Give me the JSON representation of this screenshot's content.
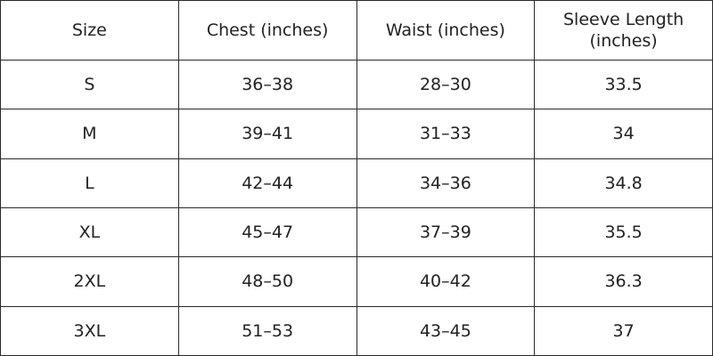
{
  "table": {
    "header": [
      "Size",
      "Chest (inches)",
      "Waist (inches)",
      "Sleeve Length (inches)"
    ],
    "rows": [
      [
        "S",
        "36–38",
        "28–30",
        "33.5"
      ],
      [
        "M",
        "39–41",
        "31–33",
        "34"
      ],
      [
        "L",
        "42–44",
        "34–36",
        "34.8"
      ],
      [
        "XL",
        "45–47",
        "37–39",
        "35.5"
      ],
      [
        "2XL",
        "48–50",
        "40–42",
        "36.3"
      ],
      [
        "3XL",
        "51–53",
        "43–45",
        "37"
      ]
    ]
  }
}
